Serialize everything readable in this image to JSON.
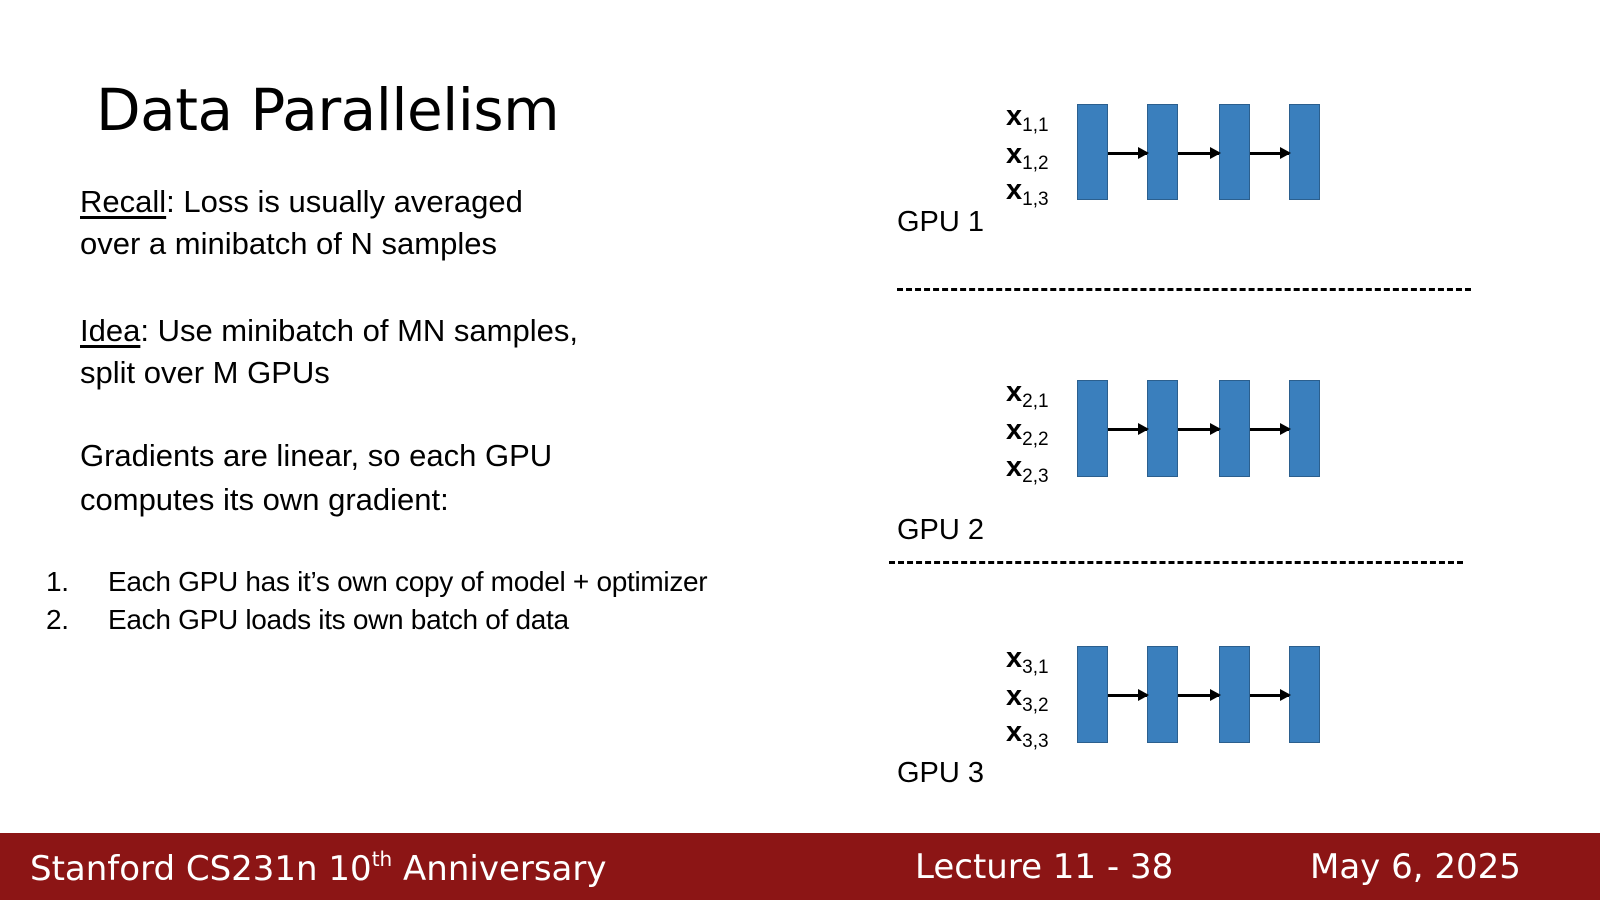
{
  "slide": {
    "title": "Data Parallelism",
    "recall_label": "Recall",
    "recall_text": ": Loss is usually averaged",
    "recall_text2": "over a minibatch of N samples",
    "idea_label": "Idea",
    "idea_text": ": Use minibatch of MN samples,",
    "idea_text2": "split over M GPUs",
    "grad_line1": "Gradients are linear, so each GPU",
    "grad_line2": "computes its own gradient:",
    "steps": [
      {
        "num": "1.",
        "text": "Each GPU has it’s own copy of model + optimizer"
      },
      {
        "num": "2.",
        "text": "Each GPU loads its own batch of data"
      }
    ]
  },
  "diagram": {
    "block_color": "#3a7fbd",
    "gpus": [
      {
        "label": "GPU 1",
        "inputs": [
          {
            "x": "x",
            "sub": "1,1"
          },
          {
            "x": "x",
            "sub": "1,2"
          },
          {
            "x": "x",
            "sub": "1,3"
          }
        ]
      },
      {
        "label": "GPU 2",
        "inputs": [
          {
            "x": "x",
            "sub": "2,1"
          },
          {
            "x": "x",
            "sub": "2,2"
          },
          {
            "x": "x",
            "sub": "2,3"
          }
        ]
      },
      {
        "label": "GPU 3",
        "inputs": [
          {
            "x": "x",
            "sub": "3,1"
          },
          {
            "x": "x",
            "sub": "3,2"
          },
          {
            "x": "x",
            "sub": "3,3"
          }
        ]
      }
    ]
  },
  "footer": {
    "course": "Stanford CS231n 10",
    "course_sup": "th",
    "course_suffix": " Anniversary",
    "lecture": "Lecture 11 -  38",
    "date": "May 6, 2025",
    "bg_color": "#8c1515"
  }
}
